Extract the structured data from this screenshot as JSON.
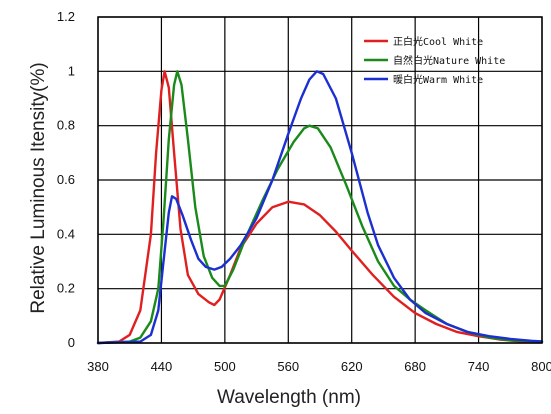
{
  "chart_data": {
    "type": "line",
    "xlabel": "Wavelength  (nm)",
    "ylabel": "Relative Luminous Itensity(%)",
    "xlim": [
      380,
      800
    ],
    "ylim": [
      0,
      1.2
    ],
    "x_ticks": [
      "380",
      "440",
      "500",
      "560",
      "620",
      "680",
      "740",
      "800"
    ],
    "y_ticks": [
      "0",
      "0.2",
      "0.4",
      "0.6",
      "0.8",
      "1",
      "1.2"
    ],
    "grid": true,
    "legend_position": "top-right",
    "series": [
      {
        "name": "正白光Cool White",
        "color": "#e02020",
        "points": [
          [
            380,
            0
          ],
          [
            400,
            0.005
          ],
          [
            410,
            0.03
          ],
          [
            420,
            0.12
          ],
          [
            430,
            0.4
          ],
          [
            435,
            0.7
          ],
          [
            440,
            0.93
          ],
          [
            443,
            1.0
          ],
          [
            447,
            0.94
          ],
          [
            452,
            0.7
          ],
          [
            458,
            0.42
          ],
          [
            465,
            0.25
          ],
          [
            475,
            0.18
          ],
          [
            485,
            0.15
          ],
          [
            490,
            0.14
          ],
          [
            495,
            0.16
          ],
          [
            505,
            0.25
          ],
          [
            515,
            0.35
          ],
          [
            530,
            0.44
          ],
          [
            545,
            0.5
          ],
          [
            560,
            0.52
          ],
          [
            575,
            0.51
          ],
          [
            590,
            0.47
          ],
          [
            605,
            0.41
          ],
          [
            620,
            0.34
          ],
          [
            640,
            0.25
          ],
          [
            660,
            0.17
          ],
          [
            680,
            0.11
          ],
          [
            700,
            0.07
          ],
          [
            720,
            0.04
          ],
          [
            740,
            0.025
          ],
          [
            760,
            0.013
          ],
          [
            780,
            0.006
          ],
          [
            800,
            0.003
          ]
        ]
      },
      {
        "name": "自然白光Nature White",
        "color": "#1a8a1a",
        "points": [
          [
            380,
            0
          ],
          [
            410,
            0.005
          ],
          [
            420,
            0.02
          ],
          [
            430,
            0.08
          ],
          [
            437,
            0.2
          ],
          [
            442,
            0.45
          ],
          [
            447,
            0.75
          ],
          [
            452,
            0.95
          ],
          [
            455,
            1.0
          ],
          [
            459,
            0.95
          ],
          [
            465,
            0.75
          ],
          [
            472,
            0.5
          ],
          [
            480,
            0.32
          ],
          [
            488,
            0.24
          ],
          [
            495,
            0.21
          ],
          [
            500,
            0.21
          ],
          [
            508,
            0.27
          ],
          [
            520,
            0.39
          ],
          [
            535,
            0.52
          ],
          [
            550,
            0.64
          ],
          [
            565,
            0.74
          ],
          [
            575,
            0.79
          ],
          [
            580,
            0.8
          ],
          [
            588,
            0.79
          ],
          [
            600,
            0.72
          ],
          [
            615,
            0.58
          ],
          [
            630,
            0.43
          ],
          [
            645,
            0.3
          ],
          [
            660,
            0.21
          ],
          [
            675,
            0.16
          ],
          [
            690,
            0.12
          ],
          [
            710,
            0.07
          ],
          [
            730,
            0.04
          ],
          [
            750,
            0.02
          ],
          [
            770,
            0.01
          ],
          [
            800,
            0.005
          ]
        ]
      },
      {
        "name": "暖白光Warm White",
        "color": "#1c2fd0",
        "points": [
          [
            380,
            0
          ],
          [
            420,
            0.005
          ],
          [
            430,
            0.03
          ],
          [
            437,
            0.12
          ],
          [
            442,
            0.3
          ],
          [
            447,
            0.48
          ],
          [
            450,
            0.54
          ],
          [
            454,
            0.53
          ],
          [
            460,
            0.47
          ],
          [
            468,
            0.38
          ],
          [
            475,
            0.31
          ],
          [
            482,
            0.28
          ],
          [
            490,
            0.27
          ],
          [
            497,
            0.28
          ],
          [
            505,
            0.31
          ],
          [
            515,
            0.36
          ],
          [
            530,
            0.46
          ],
          [
            545,
            0.6
          ],
          [
            560,
            0.77
          ],
          [
            572,
            0.9
          ],
          [
            580,
            0.97
          ],
          [
            587,
            1.0
          ],
          [
            593,
            0.99
          ],
          [
            605,
            0.9
          ],
          [
            620,
            0.7
          ],
          [
            635,
            0.48
          ],
          [
            645,
            0.36
          ],
          [
            660,
            0.24
          ],
          [
            675,
            0.16
          ],
          [
            690,
            0.11
          ],
          [
            710,
            0.07
          ],
          [
            730,
            0.04
          ],
          [
            750,
            0.025
          ],
          [
            770,
            0.015
          ],
          [
            790,
            0.008
          ],
          [
            800,
            0.006
          ]
        ]
      }
    ]
  }
}
